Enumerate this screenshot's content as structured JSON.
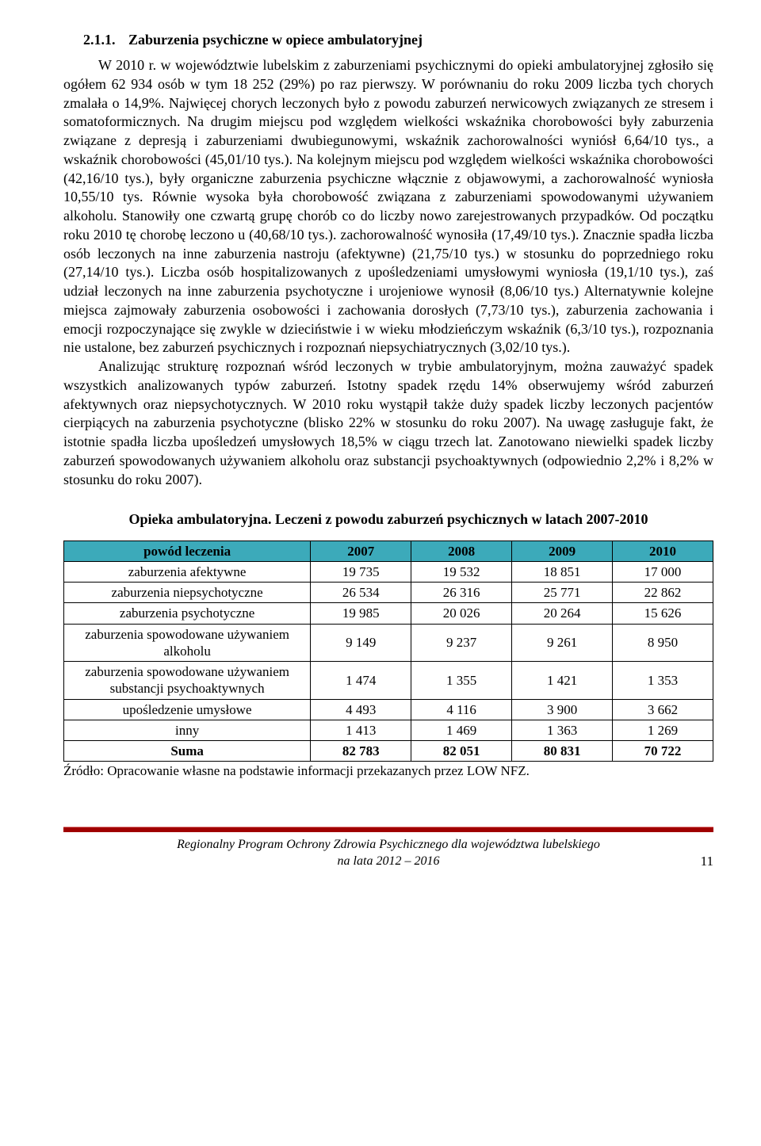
{
  "section": {
    "num": "2.1.1.",
    "title": "Zaburzenia psychiczne w opiece ambulatoryjnej"
  },
  "intro": "W 2010 r. w województwie lubelskim z zaburzeniami psychicznymi do opieki ambulatoryjnej zgłosiło się ogółem 62 934 osób w tym 18 252 (29%) po raz pierwszy. W porównaniu do roku 2009 liczba tych chorych zmalała o 14,9%. Najwięcej chorych leczonych było z powodu zaburzeń nerwicowych związanych ze stresem i somatoformicznych. Na drugim miejscu pod względem wielkości wskaźnika chorobowości były zaburzenia związane z depresją i zaburzeniami dwubiegunowymi, wskaźnik zachorowalności wyniósł 6,64/10 tys., a wskaźnik chorobowości (45,01/10 tys.). Na kolejnym miejscu pod względem wielkości wskaźnika chorobowości (42,16/10 tys.), były organiczne zaburzenia psychiczne włącznie z objawowymi, a zachorowalność wyniosła 10,55/10 tys. Równie wysoka była chorobowość związana z zaburzeniami spowodowanymi używaniem alkoholu. Stanowiły one czwartą grupę chorób co do liczby nowo zarejestrowanych przypadków. Od początku roku 2010 tę chorobę leczono u (40,68/10 tys.). zachorowalność wynosiła (17,49/10 tys.). Znacznie spadła liczba osób leczonych na inne zaburzenia nastroju (afektywne) (21,75/10 tys.) w stosunku do poprzedniego roku (27,14/10 tys.). Liczba osób hospitalizowanych z upośledzeniami umysłowymi wyniosła (19,1/10 tys.), zaś udział leczonych na inne zaburzenia psychotyczne i urojeniowe wynosił (8,06/10 tys.) Alternatywnie kolejne miejsca zajmowały zaburzenia osobowości i zachowania dorosłych (7,73/10 tys.), zaburzenia zachowania i emocji rozpoczynające się zwykle w dzieciństwie i w wieku młodzieńczym wskaźnik (6,3/10 tys.), rozpoznania nie ustalone, bez zaburzeń psychicznych i rozpoznań niepsychiatrycznych (3,02/10 tys.).",
  "para2": "Analizując strukturę rozpoznań wśród leczonych w trybie ambulatoryjnym, można zauważyć spadek wszystkich analizowanych typów zaburzeń. Istotny spadek rzędu 14% obserwujemy wśród zaburzeń afektywnych oraz niepsychotycznych. W 2010 roku wystąpił także duży spadek liczby leczonych pacjentów cierpiących na zaburzenia psychotyczne (blisko 22% w stosunku do roku 2007). Na uwagę zasługuje fakt, że istotnie spadła liczba upośledzeń umysłowych 18,5% w ciągu trzech lat. Zanotowano niewielki spadek liczby zaburzeń spowodowanych używaniem alkoholu oraz substancji psychoaktywnych (odpowiednio 2,2% i 8,2% w stosunku do roku 2007).",
  "table": {
    "title": "Opieka ambulatoryjna. Leczeni z powodu zaburzeń psychicznych w latach 2007-2010",
    "header_bg": "#3caaba",
    "columns": [
      "powód leczenia",
      "2007",
      "2008",
      "2009",
      "2010"
    ],
    "rows": [
      {
        "label": "zaburzenia afektywne",
        "v": [
          "19 735",
          "19 532",
          "18 851",
          "17 000"
        ]
      },
      {
        "label": "zaburzenia niepsychotyczne",
        "v": [
          "26 534",
          "26 316",
          "25 771",
          "22 862"
        ]
      },
      {
        "label": "zaburzenia psychotyczne",
        "v": [
          "19 985",
          "20 026",
          "20 264",
          "15 626"
        ]
      },
      {
        "label": "zaburzenia spowodowane używaniem alkoholu",
        "v": [
          "9 149",
          "9 237",
          "9 261",
          "8 950"
        ]
      },
      {
        "label": "zaburzenia spowodowane używaniem substancji psychoaktywnych",
        "v": [
          "1 474",
          "1 355",
          "1 421",
          "1 353"
        ]
      },
      {
        "label": "upośledzenie umysłowe",
        "v": [
          "4 493",
          "4 116",
          "3 900",
          "3 662"
        ]
      },
      {
        "label": "inny",
        "v": [
          "1 413",
          "1 469",
          "1 363",
          "1 269"
        ]
      }
    ],
    "sum": {
      "label": "Suma",
      "v": [
        "82 783",
        "82 051",
        "80 831",
        "70 722"
      ]
    }
  },
  "source": "Źródło: Opracowanie własne na podstawie informacji przekazanych przez LOW NFZ.",
  "footer": {
    "line1": "Regionalny Program Ochrony Zdrowia Psychicznego dla województwa lubelskiego",
    "line2": "na lata 2012 – 2016",
    "page": "11",
    "bar_color": "#a00000"
  }
}
